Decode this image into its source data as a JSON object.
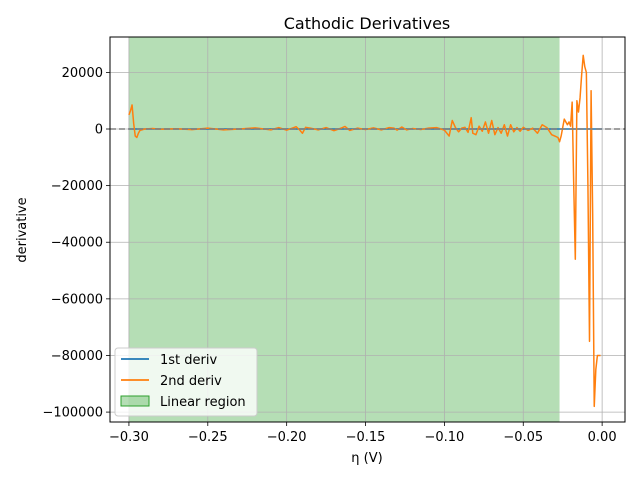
{
  "chart_data": {
    "type": "line",
    "title": "Cathodic Derivatives",
    "xlabel": "η (V)",
    "ylabel": "derivative",
    "xlim": [
      -0.312,
      0.0145
    ],
    "ylim": [
      -103500,
      32500
    ],
    "grid": true,
    "legend_position": "lower-left",
    "x_ticks": [
      -0.3,
      -0.25,
      -0.2,
      -0.15,
      -0.1,
      -0.05,
      0.0
    ],
    "x_tick_labels": [
      "−0.30",
      "−0.25",
      "−0.20",
      "−0.15",
      "−0.10",
      "−0.05",
      "0.00"
    ],
    "y_ticks": [
      -100000,
      -80000,
      -60000,
      -40000,
      -20000,
      0,
      20000
    ],
    "y_tick_labels": [
      "−100000",
      "−80000",
      "−60000",
      "−40000",
      "−20000",
      "0",
      "20000"
    ],
    "reference_line": {
      "y": 0,
      "color": "#808080",
      "style": "dashed"
    },
    "shaded_region": {
      "name": "Linear region",
      "x_start": -0.3,
      "x_end": -0.027,
      "color": "#2ca02c",
      "opacity": 0.35
    },
    "series": [
      {
        "name": "1st deriv",
        "color": "#1f77b4",
        "x": [
          -0.3,
          -0.25,
          -0.2,
          -0.15,
          -0.1,
          -0.05,
          -0.02,
          -0.01,
          0.0
        ],
        "y": [
          0,
          0,
          0,
          0,
          0,
          0,
          0,
          0,
          0
        ]
      },
      {
        "name": "2nd deriv",
        "color": "#ff7f0e",
        "x": [
          -0.3,
          -0.299,
          -0.298,
          -0.297,
          -0.296,
          -0.295,
          -0.294,
          -0.293,
          -0.29,
          -0.285,
          -0.28,
          -0.27,
          -0.26,
          -0.25,
          -0.24,
          -0.23,
          -0.22,
          -0.21,
          -0.205,
          -0.2,
          -0.197,
          -0.194,
          -0.192,
          -0.19,
          -0.188,
          -0.185,
          -0.18,
          -0.175,
          -0.17,
          -0.165,
          -0.163,
          -0.16,
          -0.155,
          -0.15,
          -0.145,
          -0.14,
          -0.135,
          -0.132,
          -0.13,
          -0.127,
          -0.124,
          -0.12,
          -0.115,
          -0.11,
          -0.105,
          -0.1,
          -0.097,
          -0.095,
          -0.093,
          -0.091,
          -0.089,
          -0.087,
          -0.085,
          -0.083,
          -0.082,
          -0.08,
          -0.078,
          -0.076,
          -0.074,
          -0.072,
          -0.07,
          -0.068,
          -0.066,
          -0.064,
          -0.062,
          -0.06,
          -0.058,
          -0.056,
          -0.054,
          -0.052,
          -0.05,
          -0.047,
          -0.044,
          -0.041,
          -0.038,
          -0.035,
          -0.032,
          -0.03,
          -0.028,
          -0.027,
          -0.026,
          -0.024,
          -0.022,
          -0.021,
          -0.02,
          -0.019,
          -0.018,
          -0.017,
          -0.016,
          -0.015,
          -0.014,
          -0.013,
          -0.012,
          -0.011,
          -0.01,
          -0.009,
          -0.008,
          -0.007,
          -0.006,
          -0.005,
          -0.004,
          -0.003,
          -0.002,
          -0.001
        ],
        "y": [
          5000,
          6500,
          8500,
          2000,
          -2500,
          -3000,
          -1500,
          -500,
          0,
          200,
          -100,
          100,
          -200,
          300,
          -300,
          0,
          400,
          -300,
          500,
          -400,
          200,
          800,
          -200,
          -1500,
          600,
          300,
          -300,
          500,
          -600,
          400,
          900,
          -500,
          300,
          -200,
          400,
          -300,
          500,
          300,
          -400,
          700,
          -300,
          200,
          -200,
          300,
          500,
          -400,
          -2500,
          3000,
          500,
          -1000,
          300,
          600,
          -1200,
          4000,
          -1500,
          -2000,
          1000,
          -800,
          2500,
          -1500,
          3000,
          -2000,
          500,
          -1500,
          1500,
          -2500,
          1500,
          -1000,
          500,
          -800,
          600,
          -500,
          300,
          -1500,
          1500,
          500,
          -2000,
          -2500,
          -3000,
          -4500,
          -2500,
          3500,
          1500,
          2500,
          1000,
          9500,
          -20000,
          -46000,
          10000,
          6000,
          11000,
          19000,
          26000,
          22000,
          20000,
          -20000,
          -75000,
          13500,
          -30000,
          -98000,
          -85000,
          -80000,
          -80000,
          -80000
        ]
      }
    ]
  }
}
